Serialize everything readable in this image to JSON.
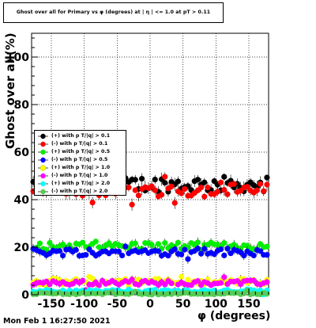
{
  "chart_data": {
    "type": "scatter",
    "title": "Ghost over all for Primary vs φ (degrees) at | η | <= 1.0 at pT > 0.11",
    "xlabel": "φ (degrees)",
    "ylabel": "Ghost over all(%)",
    "xlim": [
      -180,
      180
    ],
    "ylim": [
      0,
      110
    ],
    "x_ticks": [
      -150,
      -100,
      -50,
      0,
      50,
      100,
      150
    ],
    "y_ticks": [
      0,
      20,
      40,
      60,
      80,
      100
    ],
    "grid": true,
    "legend_position": "middle-left",
    "timestamp": "Mon Feb  1 16:27:50 2021",
    "series": [
      {
        "name": "(+) with p T/|q| > 0.1",
        "color": "#000000",
        "marker": "circle",
        "level": 46.5,
        "spread": 3.2,
        "error": 2.0
      },
      {
        "name": "(-) with p T/|q| > 0.1",
        "color": "#ff0000",
        "marker": "circle",
        "level": 44.0,
        "spread": 2.8,
        "error": 2.0
      },
      {
        "name": "(+) with p T/|q| > 0.5",
        "color": "#00ee00",
        "marker": "circle",
        "level": 20.5,
        "spread": 1.6,
        "error": 1.5
      },
      {
        "name": "(-) with p T/|q| > 0.5",
        "color": "#0000ff",
        "marker": "circle",
        "level": 18.0,
        "spread": 1.6,
        "error": 1.5
      },
      {
        "name": "(+) with p T/|q| > 1.0",
        "color": "#ffff00",
        "marker": "circle",
        "level": 5.5,
        "spread": 1.3,
        "error": 1.2
      },
      {
        "name": "(-) with p T/|q| > 1.0",
        "color": "#ff00ff",
        "marker": "circle",
        "level": 5.0,
        "spread": 1.0,
        "error": 1.2
      },
      {
        "name": "(+) with p T/|q| > 2.0",
        "color": "#00ffff",
        "marker": "circle",
        "level": 1.5,
        "spread": 0.6,
        "error": 0.8
      },
      {
        "name": "(-) with p T/|q| > 2.0",
        "color": "#55cc55",
        "marker": "circle",
        "level": 0.5,
        "spread": 0.4,
        "error": 0.6
      }
    ]
  }
}
